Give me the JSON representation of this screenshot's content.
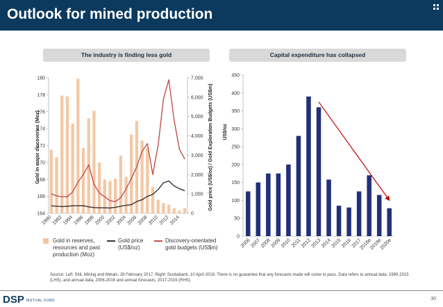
{
  "title": "Outlook for mined production",
  "colors": {
    "header_bg": "#0b3a5e",
    "bar": "#22307a",
    "line_dark": "#333333",
    "line_red": "#c0504d",
    "arrow": "#c00000"
  },
  "left_panel": {
    "heading": "The industry is finding less gold"
  },
  "right_panel": {
    "heading": "Capital expenditure has collapsed"
  },
  "legend": {
    "bars_label": "Gold in reserves, resources and past production (Moz)",
    "gold_price_label": "Gold price (US$/oz)",
    "discovery_label": "Discovery-orientated gold budgets (US$m)"
  },
  "source_text": "Source: Left: SNL Mining and Metals, 28 February 2017. Right: Scotiabank, 10 April 2018. There is no guarantee that any forecasts made will come to pass. Data refers to annual data, 1990-2015 (LHS), and annual data, 2006-2016 and annual forecasts, 2017-2019 (RHS).",
  "footer": {
    "logo": "DSP",
    "logo_sub": "MUTUAL FUND",
    "page_number": "30"
  },
  "chart_data": [
    {
      "type": "bar",
      "title": "The industry is finding less gold",
      "ylabel": "Gold in major discoveries (Moz)",
      "y2label": "Gold price (US$/oz) / Gold Exploration Budgets (US$m)",
      "ylim": [
        164,
        180
      ],
      "y2lim": [
        0,
        7000
      ],
      "yticks": [
        "164",
        "166",
        "168",
        "170",
        "172",
        "174",
        "176",
        "178",
        "180"
      ],
      "y2ticks": [
        "0",
        "1,000",
        "2,000",
        "3,000",
        "4,000",
        "5,000",
        "6,000",
        "7,000"
      ],
      "xticks": [
        "1990",
        "1992",
        "1994",
        "1996",
        "1998",
        "2000",
        "2002",
        "2004",
        "2006",
        "2008",
        "2010",
        "2012",
        "2014"
      ],
      "categories": [
        1990,
        1991,
        1992,
        1993,
        1994,
        1995,
        1996,
        1997,
        1998,
        1999,
        2000,
        2001,
        2002,
        2003,
        2004,
        2005,
        2006,
        2007,
        2008,
        2009,
        2010,
        2011,
        2012,
        2013,
        2014,
        2015
      ],
      "series": [
        {
          "name": "Gold in reserves, resources and past production (Moz)",
          "kind": "bar",
          "axis": "left",
          "values": [
            171.5,
            170.6,
            177.9,
            177.8,
            174.6,
            179.9,
            171.7,
            175.2,
            176.1,
            170.0,
            168.0,
            167.8,
            168.1,
            170.8,
            168.3,
            173.3,
            174.9,
            172.6,
            171.7,
            167.1,
            165.6,
            165.2,
            165.0,
            164.6,
            164.3,
            164.6
          ]
        },
        {
          "name": "Gold price (US$/oz)",
          "kind": "line",
          "axis": "right",
          "values": [
            383,
            362,
            344,
            360,
            384,
            384,
            388,
            331,
            294,
            279,
            279,
            271,
            310,
            363,
            409,
            445,
            604,
            695,
            872,
            972,
            1225,
            1572,
            1669,
            1411,
            1266,
            1160
          ]
        },
        {
          "name": "Discovery-orientated gold budgets (US$m)",
          "kind": "line",
          "axis": "right",
          "values": [
            1000,
            900,
            850,
            850,
            1100,
            1600,
            2000,
            2500,
            1500,
            1050,
            850,
            650,
            600,
            800,
            1250,
            1800,
            2400,
            3200,
            3600,
            2000,
            3500,
            5900,
            6900,
            4800,
            3300,
            2800
          ]
        }
      ]
    },
    {
      "type": "bar",
      "title": "Capital expenditure has collapsed",
      "ylabel": "US$/oz",
      "ylim": [
        0,
        450
      ],
      "yticks": [
        "0",
        "50",
        "100",
        "150",
        "200",
        "250",
        "300",
        "350",
        "400",
        "450"
      ],
      "categories": [
        "2006",
        "2007",
        "2008",
        "2009",
        "2010",
        "2011",
        "2012",
        "2013",
        "2014",
        "2015",
        "2016",
        "2017",
        "2018e",
        "2019e",
        "2020e"
      ],
      "values": [
        125,
        150,
        175,
        175,
        200,
        280,
        390,
        360,
        158,
        85,
        80,
        125,
        170,
        115,
        78
      ],
      "annotations": [
        {
          "type": "arrow",
          "from_category": "2013",
          "from_value": 375,
          "to_category": "2020e",
          "to_value": 100
        }
      ]
    }
  ]
}
